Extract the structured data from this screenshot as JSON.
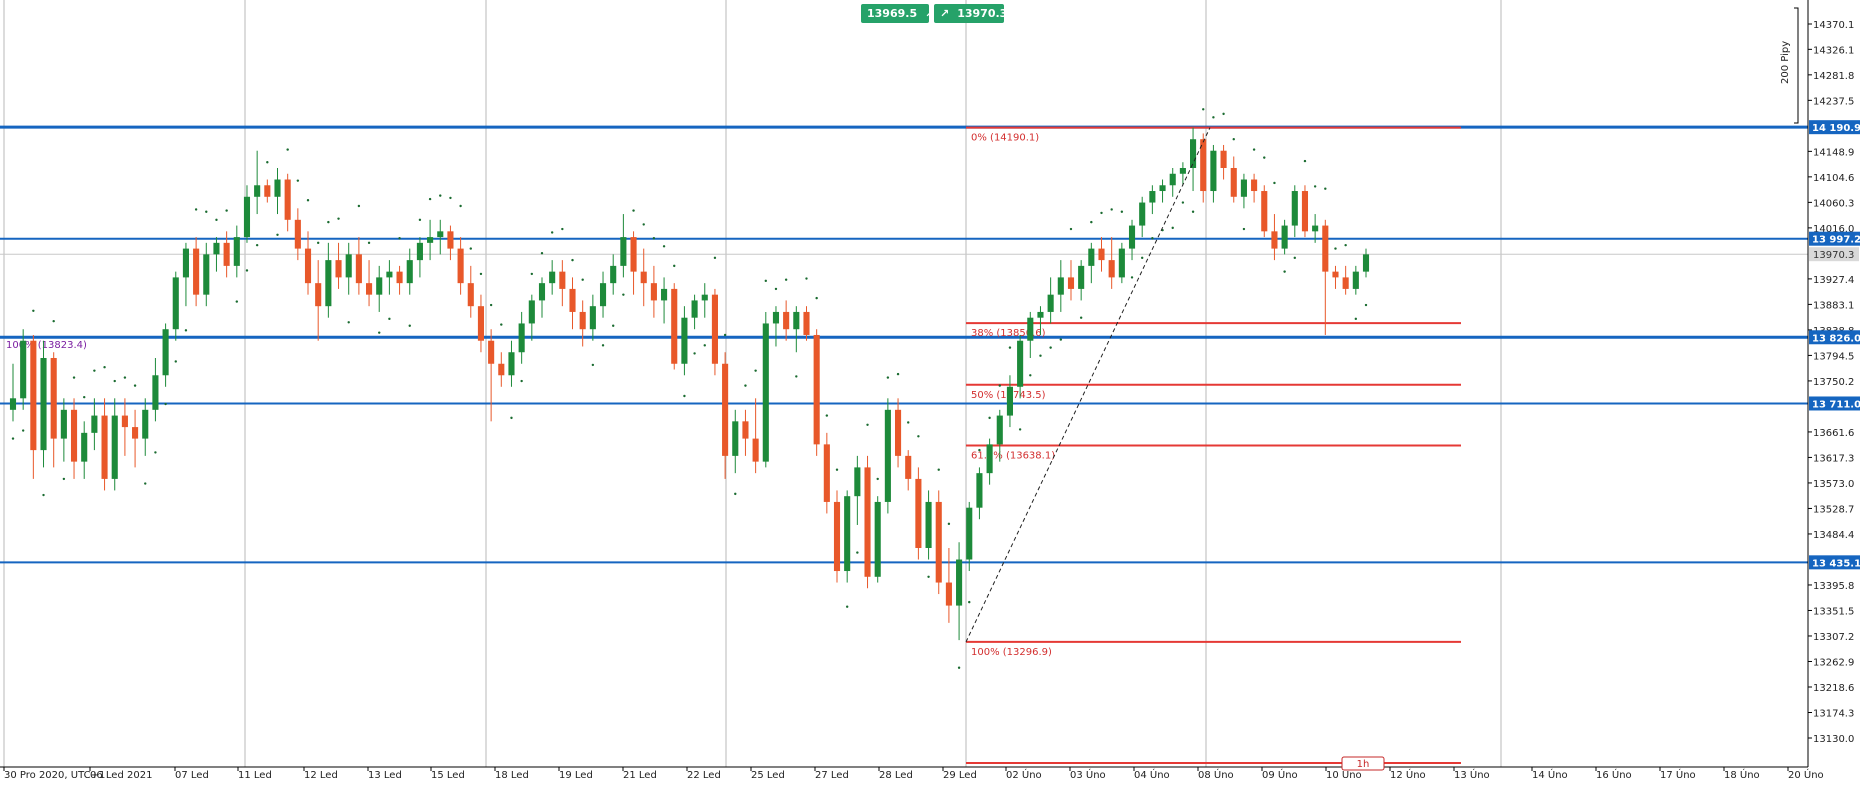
{
  "chart_data": {
    "type": "candlestick",
    "timeframe": "1h",
    "price_range": [
      13100,
      14400
    ],
    "right_axis_ticks": [
      "14370.1",
      "14326.1",
      "14281.8",
      "14237.5",
      "14148.9",
      "14104.6",
      "14060.3",
      "14016.0",
      "13927.4",
      "13883.1",
      "13838.8",
      "13794.5",
      "13750.2",
      "13661.6",
      "13617.3",
      "13573.0",
      "13528.7",
      "13484.4",
      "13395.8",
      "13351.5",
      "13307.2",
      "13262.9",
      "13218.6",
      "13174.3",
      "13130.0"
    ],
    "current_price": "13970.3",
    "x_labels": [
      "30 Pro 2020, UTC+1",
      "06 Led 2021",
      "07 Led",
      "11 Led",
      "12 Led",
      "13 Led",
      "15 Led",
      "18 Led",
      "19 Led",
      "21 Led",
      "22 Led",
      "25 Led",
      "27 Led",
      "28 Led",
      "29 Led",
      "02 Úno",
      "03 Úno",
      "04 Úno",
      "08 Úno",
      "09 Úno",
      "10 Úno",
      "12 Úno",
      "13 Úno",
      "14 Úno",
      "16 Úno",
      "17 Úno",
      "18 Úno",
      "20 Úno"
    ],
    "horizontal_levels": [
      {
        "label": "14 190.9",
        "value": 14190.9
      },
      {
        "label": "13 997.2",
        "value": 13997.2
      },
      {
        "label": "13 826.0",
        "value": 13826.0
      },
      {
        "label": "13 711.0",
        "value": 13711.0
      },
      {
        "label": "13 435.1",
        "value": 13435.1
      }
    ],
    "fibonacci": [
      {
        "label": "0% (14190.1)",
        "value": 14190.1
      },
      {
        "label": "38% (13850.6)",
        "value": 13850.6
      },
      {
        "label": "50% (13743.5)",
        "value": 13743.5
      },
      {
        "label": "61.8% (13638.1)",
        "value": 13638.1
      },
      {
        "label": "100% (13296.9)",
        "value": 13296.9
      }
    ],
    "left_fib_label": {
      "label": "100% (13823.4)",
      "value": 13823.4
    },
    "pips_label": "200 Pipy",
    "candles": [
      [
        13700,
        13780,
        13680,
        13720
      ],
      [
        13720,
        13840,
        13700,
        13820
      ],
      [
        13820,
        13830,
        13580,
        13630
      ],
      [
        13630,
        13820,
        13600,
        13790
      ],
      [
        13790,
        13800,
        13600,
        13650
      ],
      [
        13650,
        13720,
        13610,
        13700
      ],
      [
        13700,
        13720,
        13580,
        13610
      ],
      [
        13610,
        13680,
        13580,
        13660
      ],
      [
        13660,
        13720,
        13630,
        13690
      ],
      [
        13690,
        13720,
        13560,
        13580
      ],
      [
        13580,
        13720,
        13560,
        13690
      ],
      [
        13690,
        13720,
        13620,
        13670
      ],
      [
        13670,
        13700,
        13600,
        13650
      ],
      [
        13650,
        13720,
        13620,
        13700
      ],
      [
        13700,
        13790,
        13680,
        13760
      ],
      [
        13760,
        13850,
        13740,
        13840
      ],
      [
        13840,
        13940,
        13820,
        13930
      ],
      [
        13930,
        13990,
        13880,
        13980
      ],
      [
        13980,
        14000,
        13880,
        13900
      ],
      [
        13900,
        13990,
        13880,
        13970
      ],
      [
        13970,
        14000,
        13940,
        13990
      ],
      [
        13990,
        14010,
        13930,
        13950
      ],
      [
        13950,
        14020,
        13930,
        14000
      ],
      [
        14000,
        14090,
        13990,
        14070
      ],
      [
        14070,
        14150,
        14040,
        14090
      ],
      [
        14090,
        14100,
        14060,
        14070
      ],
      [
        14070,
        14120,
        14040,
        14100
      ],
      [
        14100,
        14110,
        14010,
        14030
      ],
      [
        14030,
        14050,
        13960,
        13980
      ],
      [
        13980,
        14010,
        13900,
        13920
      ],
      [
        13920,
        13960,
        13820,
        13880
      ],
      [
        13880,
        13990,
        13860,
        13960
      ],
      [
        13960,
        13990,
        13910,
        13930
      ],
      [
        13930,
        13990,
        13900,
        13970
      ],
      [
        13970,
        14000,
        13900,
        13920
      ],
      [
        13920,
        13960,
        13880,
        13900
      ],
      [
        13900,
        13950,
        13870,
        13930
      ],
      [
        13930,
        13960,
        13900,
        13940
      ],
      [
        13940,
        13950,
        13900,
        13920
      ],
      [
        13920,
        13980,
        13900,
        13960
      ],
      [
        13960,
        14000,
        13930,
        13990
      ],
      [
        13990,
        14030,
        13960,
        14000
      ],
      [
        14000,
        14030,
        13970,
        14010
      ],
      [
        14010,
        14020,
        13960,
        13980
      ],
      [
        13980,
        14000,
        13900,
        13920
      ],
      [
        13920,
        13950,
        13860,
        13880
      ],
      [
        13880,
        13900,
        13800,
        13820
      ],
      [
        13820,
        13840,
        13680,
        13780
      ],
      [
        13780,
        13800,
        13740,
        13760
      ],
      [
        13760,
        13820,
        13740,
        13800
      ],
      [
        13800,
        13870,
        13780,
        13850
      ],
      [
        13850,
        13900,
        13820,
        13890
      ],
      [
        13890,
        13930,
        13860,
        13920
      ],
      [
        13920,
        13960,
        13900,
        13940
      ],
      [
        13940,
        13960,
        13880,
        13910
      ],
      [
        13910,
        13930,
        13840,
        13870
      ],
      [
        13870,
        13890,
        13810,
        13840
      ],
      [
        13840,
        13900,
        13820,
        13880
      ],
      [
        13880,
        13940,
        13860,
        13920
      ],
      [
        13920,
        13970,
        13900,
        13950
      ],
      [
        13950,
        14040,
        13930,
        14000
      ],
      [
        14000,
        14010,
        13900,
        13940
      ],
      [
        13940,
        13980,
        13880,
        13920
      ],
      [
        13920,
        13950,
        13860,
        13890
      ],
      [
        13890,
        13930,
        13850,
        13910
      ],
      [
        13910,
        13920,
        13770,
        13780
      ],
      [
        13780,
        13880,
        13760,
        13860
      ],
      [
        13860,
        13900,
        13840,
        13890
      ],
      [
        13890,
        13920,
        13860,
        13900
      ],
      [
        13900,
        13910,
        13760,
        13780
      ],
      [
        13780,
        13800,
        13580,
        13620
      ],
      [
        13620,
        13700,
        13590,
        13680
      ],
      [
        13680,
        13700,
        13620,
        13650
      ],
      [
        13650,
        13720,
        13590,
        13610
      ],
      [
        13610,
        13870,
        13600,
        13850
      ],
      [
        13850,
        13880,
        13810,
        13870
      ],
      [
        13870,
        13890,
        13820,
        13840
      ],
      [
        13840,
        13880,
        13800,
        13870
      ],
      [
        13870,
        13880,
        13820,
        13830
      ],
      [
        13830,
        13840,
        13620,
        13640
      ],
      [
        13640,
        13660,
        13520,
        13540
      ],
      [
        13540,
        13560,
        13400,
        13420
      ],
      [
        13420,
        13560,
        13400,
        13550
      ],
      [
        13550,
        13620,
        13500,
        13600
      ],
      [
        13600,
        13620,
        13390,
        13410
      ],
      [
        13410,
        13550,
        13400,
        13540
      ],
      [
        13540,
        13720,
        13520,
        13700
      ],
      [
        13700,
        13720,
        13600,
        13620
      ],
      [
        13620,
        13630,
        13560,
        13580
      ],
      [
        13580,
        13600,
        13440,
        13460
      ],
      [
        13460,
        13560,
        13440,
        13540
      ],
      [
        13540,
        13560,
        13380,
        13400
      ],
      [
        13400,
        13460,
        13330,
        13360
      ],
      [
        13360,
        13470,
        13300,
        13440
      ],
      [
        13440,
        13540,
        13420,
        13530
      ],
      [
        13530,
        13600,
        13510,
        13590
      ],
      [
        13590,
        13650,
        13570,
        13640
      ],
      [
        13640,
        13700,
        13610,
        13690
      ],
      [
        13690,
        13760,
        13670,
        13740
      ],
      [
        13740,
        13830,
        13720,
        13820
      ],
      [
        13820,
        13870,
        13790,
        13860
      ],
      [
        13860,
        13880,
        13830,
        13870
      ],
      [
        13870,
        13930,
        13850,
        13900
      ],
      [
        13900,
        13960,
        13870,
        13930
      ],
      [
        13930,
        13960,
        13890,
        13910
      ],
      [
        13910,
        13960,
        13890,
        13950
      ],
      [
        13950,
        13990,
        13920,
        13980
      ],
      [
        13980,
        14000,
        13940,
        13960
      ],
      [
        13960,
        14000,
        13910,
        13930
      ],
      [
        13930,
        13990,
        13920,
        13980
      ],
      [
        13980,
        14030,
        13960,
        14020
      ],
      [
        14020,
        14070,
        14000,
        14060
      ],
      [
        14060,
        14090,
        14040,
        14080
      ],
      [
        14080,
        14100,
        14060,
        14090
      ],
      [
        14090,
        14120,
        14070,
        14110
      ],
      [
        14110,
        14130,
        14090,
        14120
      ],
      [
        14120,
        14190,
        14080,
        14170
      ],
      [
        14170,
        14180,
        14060,
        14080
      ],
      [
        14080,
        14160,
        14060,
        14150
      ],
      [
        14150,
        14160,
        14100,
        14120
      ],
      [
        14120,
        14140,
        14060,
        14070
      ],
      [
        14070,
        14110,
        14050,
        14100
      ],
      [
        14100,
        14110,
        14060,
        14080
      ],
      [
        14080,
        14090,
        14000,
        14010
      ],
      [
        14010,
        14040,
        13960,
        13980
      ],
      [
        13980,
        14030,
        13970,
        14020
      ],
      [
        14020,
        14090,
        14000,
        14080
      ],
      [
        14080,
        14090,
        14000,
        14010
      ],
      [
        14010,
        14040,
        13990,
        14020
      ],
      [
        14020,
        14030,
        13830,
        13940
      ],
      [
        13940,
        13950,
        13910,
        13930
      ],
      [
        13930,
        13950,
        13900,
        13910
      ],
      [
        13910,
        13950,
        13900,
        13940
      ],
      [
        13940,
        13980,
        13930,
        13970
      ]
    ]
  },
  "badges": [
    {
      "value": "13969.5",
      "arrow": "↗"
    },
    {
      "value": "13970.3",
      "arrow": "↗"
    }
  ],
  "timeframe_label": "1h",
  "colors": {
    "bull": "#1d8a3a",
    "bear": "#e8582a",
    "level": "#1565c0",
    "fib": "#e53935",
    "badge": "#26a269",
    "grid": "#b8b8b8"
  }
}
